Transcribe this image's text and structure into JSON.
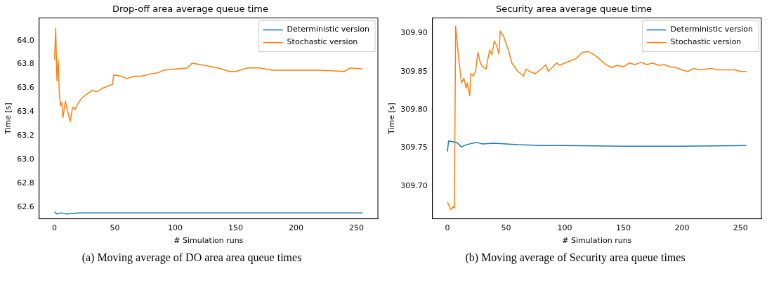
{
  "chart_data": [
    {
      "type": "line",
      "title": "Drop-off area average queue time",
      "xlabel": "# Simulation runs",
      "ylabel": "Time [s]",
      "xlim": [
        -12.75,
        267.75
      ],
      "ylim": [
        62.5,
        64.19
      ],
      "xticks": [
        0,
        50,
        100,
        150,
        200,
        250
      ],
      "yticks": [
        {
          "value": 62.6,
          "label": "62.6"
        },
        {
          "value": 62.8,
          "label": "62.8"
        },
        {
          "value": 63,
          "label": "63.0"
        },
        {
          "value": 63.2,
          "label": "63.2"
        },
        {
          "value": 63.4,
          "label": "63.4"
        },
        {
          "value": 63.6,
          "label": "63.6"
        },
        {
          "value": 63.8,
          "label": "63.8"
        },
        {
          "value": 64,
          "label": "64.0"
        }
      ],
      "grid": false,
      "legend": "top right",
      "marker": "none",
      "line_style": "solid",
      "annotations": [
        "(a) Moving average of DO area area queue times"
      ],
      "series": [
        {
          "name": "Deterministic version",
          "color": "#1f77b4",
          "x": [
            0,
            2,
            5,
            10,
            20,
            35,
            50,
            100,
            150,
            200,
            255
          ],
          "values": [
            62.56,
            62.54,
            62.55,
            62.54,
            62.55,
            62.55,
            62.55,
            62.55,
            62.55,
            62.55,
            62.55
          ]
        },
        {
          "name": "Stochastic version",
          "color": "#ff7f0e",
          "x": [
            0,
            1,
            2,
            3,
            4,
            5,
            6,
            7,
            9,
            11,
            13,
            15,
            17,
            20,
            23,
            27,
            31,
            35,
            40,
            45,
            48,
            49,
            55,
            60,
            66,
            72,
            80,
            86,
            90,
            100,
            110,
            114,
            125,
            135,
            145,
            150,
            160,
            170,
            180,
            200,
            220,
            240,
            245,
            255
          ],
          "values": [
            63.84,
            64.1,
            63.66,
            63.84,
            63.55,
            63.45,
            63.48,
            63.35,
            63.49,
            63.4,
            63.32,
            63.44,
            63.42,
            63.48,
            63.52,
            63.55,
            63.58,
            63.57,
            63.6,
            63.62,
            63.63,
            63.71,
            63.7,
            63.68,
            63.7,
            63.7,
            63.72,
            63.73,
            63.75,
            63.76,
            63.77,
            63.81,
            63.79,
            63.77,
            63.74,
            63.74,
            63.77,
            63.77,
            63.75,
            63.75,
            63.75,
            63.74,
            63.77,
            63.76
          ]
        }
      ]
    },
    {
      "type": "line",
      "title": "Security area average queue time",
      "xlabel": "# Simulation runs",
      "ylabel": "Time [s]",
      "xlim": [
        -12.75,
        267.75
      ],
      "ylim": [
        309.657,
        309.92
      ],
      "xticks": [
        0,
        50,
        100,
        150,
        200,
        250
      ],
      "yticks": [
        {
          "value": 309.7,
          "label": "309.70"
        },
        309.75,
        {
          "value": 309.8,
          "label": "309.80"
        },
        309.85,
        {
          "value": 309.9,
          "label": "309.90"
        }
      ],
      "grid": false,
      "legend": "top right",
      "marker": "none",
      "line_style": "solid",
      "annotations": [
        "(b) Moving average of Security area queue times"
      ],
      "series": [
        {
          "name": "Deterministic version",
          "color": "#1f77b4",
          "x": [
            0,
            1,
            4,
            8,
            12,
            16,
            25,
            30,
            40,
            60,
            80,
            100,
            150,
            200,
            255
          ],
          "values": [
            309.745,
            309.759,
            309.758,
            309.757,
            309.751,
            309.754,
            309.757,
            309.755,
            309.756,
            309.754,
            309.753,
            309.753,
            309.752,
            309.752,
            309.753
          ]
        },
        {
          "name": "Stochastic version",
          "color": "#ff7f0e",
          "x": [
            0,
            3,
            5,
            6,
            7,
            10,
            12,
            14,
            16,
            17,
            19,
            20,
            22,
            24,
            26,
            28,
            30,
            33,
            34,
            36,
            38,
            40,
            42,
            44,
            45,
            48,
            52,
            55,
            60,
            65,
            67,
            70,
            75,
            80,
            84,
            86,
            90,
            93,
            96,
            100,
            105,
            110,
            115,
            120,
            125,
            130,
            135,
            140,
            145,
            150,
            155,
            160,
            165,
            170,
            175,
            180,
            185,
            190,
            195,
            200,
            205,
            210,
            215,
            220,
            225,
            230,
            235,
            240,
            245,
            250,
            255
          ],
          "values": [
            309.679,
            309.669,
            309.673,
            309.671,
            309.909,
            309.862,
            309.835,
            309.841,
            309.828,
            309.835,
            309.818,
            309.847,
            309.844,
            309.85,
            309.875,
            309.862,
            309.856,
            309.853,
            309.862,
            309.878,
            309.872,
            309.89,
            309.884,
            309.873,
            309.903,
            309.896,
            309.878,
            309.861,
            309.85,
            309.844,
            309.853,
            309.85,
            309.847,
            309.853,
            309.859,
            309.85,
            309.856,
            309.861,
            309.858,
            309.861,
            309.864,
            309.867,
            309.875,
            309.876,
            309.872,
            309.866,
            309.859,
            309.855,
            309.858,
            309.856,
            309.861,
            309.859,
            309.862,
            309.859,
            309.861,
            309.858,
            309.859,
            309.856,
            309.855,
            309.852,
            309.85,
            309.854,
            309.852,
            309.853,
            309.854,
            309.852,
            309.852,
            309.852,
            309.852,
            309.85,
            309.85
          ]
        }
      ]
    }
  ]
}
